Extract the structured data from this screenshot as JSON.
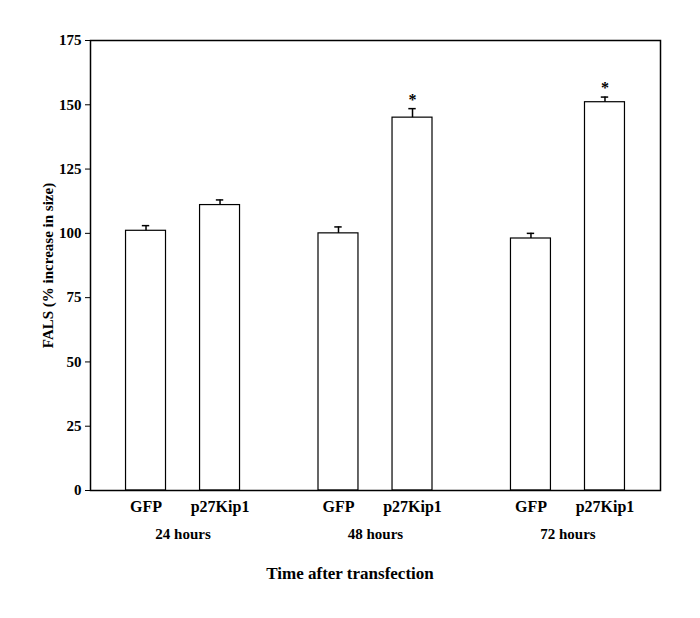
{
  "chart_data": {
    "type": "bar",
    "categories": [
      "GFP",
      "p27Kip1",
      "GFP",
      "p27Kip1",
      "GFP",
      "p27Kip1"
    ],
    "group": [
      "24 hours",
      "24 hours",
      "48 hours",
      "48 hours",
      "72 hours",
      "72 hours"
    ],
    "values": [
      101,
      111,
      100,
      145,
      98,
      151
    ],
    "errors": [
      2,
      2,
      2.5,
      3.5,
      2,
      2
    ],
    "significance": [
      null,
      null,
      null,
      "*",
      null,
      "*"
    ],
    "color": "#ffffff",
    "y_label": "FALS (% increase in size)",
    "x_label": "Time after transfection",
    "ylim": [
      0,
      175
    ],
    "yticks": [
      0,
      25,
      50,
      75,
      100,
      125,
      150,
      175
    ],
    "grid": false
  }
}
